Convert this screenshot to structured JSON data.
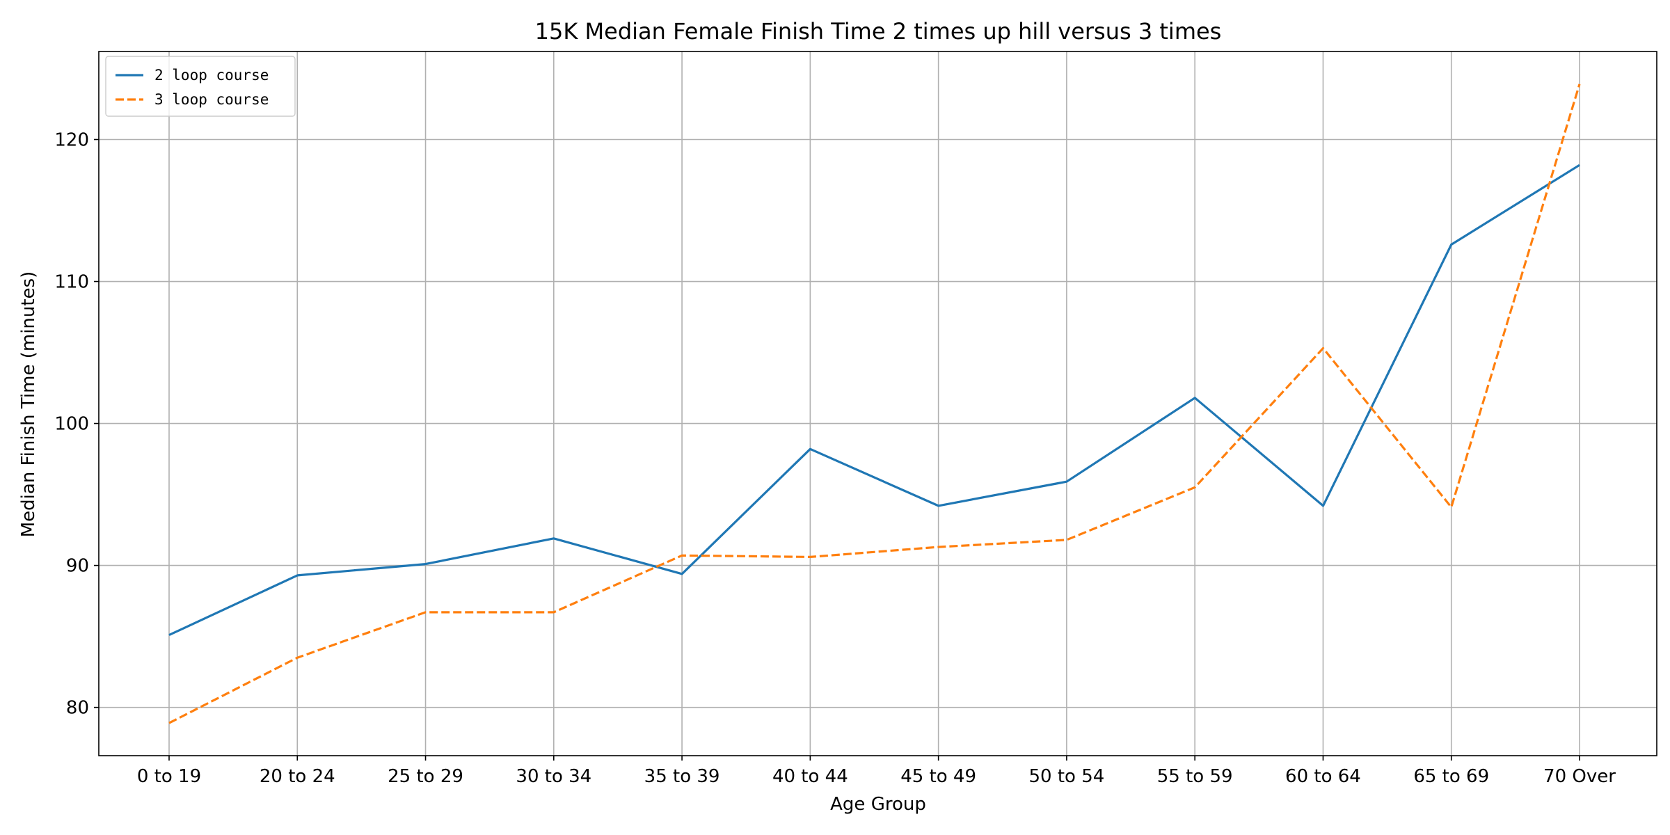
{
  "chart_data": {
    "type": "line",
    "title": "15K Median Female Finish Time 2 times up hill versus 3 times",
    "xlabel": "Age Group",
    "ylabel": "Median Finish Time (minutes)",
    "categories": [
      "0 to 19",
      "20 to 24",
      "25 to 29",
      "30 to 34",
      "35 to 39",
      "40 to 44",
      "45 to 49",
      "50 to 54",
      "55 to 59",
      "60 to 64",
      "65 to 69",
      "70 Over"
    ],
    "ylim": [
      76.6,
      126.2
    ],
    "yticks": [
      80,
      90,
      100,
      110,
      120
    ],
    "grid": true,
    "legend_position": "top-left",
    "series": [
      {
        "name": "2 loop course",
        "color": "#1f77b4",
        "line_style": "solid",
        "values": [
          85.1,
          89.3,
          90.1,
          91.9,
          89.4,
          98.2,
          94.2,
          95.9,
          101.8,
          94.2,
          112.6,
          118.2
        ]
      },
      {
        "name": "3 loop course",
        "color": "#ff7f0e",
        "line_style": "dashed",
        "values": [
          78.9,
          83.5,
          86.7,
          86.7,
          90.7,
          90.6,
          91.3,
          91.8,
          95.5,
          105.3,
          94.1,
          123.9
        ]
      }
    ]
  }
}
